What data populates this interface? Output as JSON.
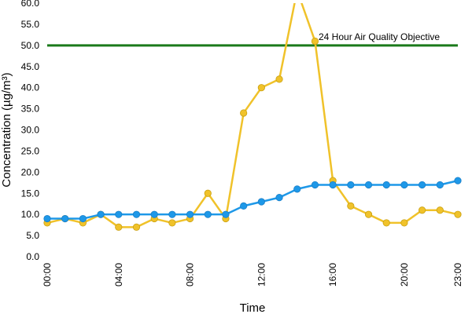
{
  "chart_data": {
    "type": "line",
    "title": "",
    "xlabel": "Time",
    "ylabel": "Concentration (µg/m³)",
    "ylim": [
      0,
      60
    ],
    "yticks": [
      "0.0",
      "5.0",
      "10.0",
      "15.0",
      "20.0",
      "25.0",
      "30.0",
      "35.0",
      "40.0",
      "45.0",
      "50.0",
      "55.0",
      "60.0"
    ],
    "x": [
      "00:00",
      "01:00",
      "02:00",
      "03:00",
      "04:00",
      "05:00",
      "06:00",
      "07:00",
      "08:00",
      "09:00",
      "10:00",
      "11:00",
      "12:00",
      "13:00",
      "14:00",
      "15:00",
      "16:00",
      "17:00",
      "18:00",
      "19:00",
      "20:00",
      "21:00",
      "22:00",
      "23:00"
    ],
    "xticks": [
      "00:00",
      "04:00",
      "08:00",
      "12:00",
      "16:00",
      "20:00",
      "23:00"
    ],
    "grid": false,
    "legend": "none",
    "series": [
      {
        "color": "#f0c22a",
        "values": [
          8,
          9,
          8,
          10,
          7,
          7,
          9,
          8,
          9,
          15,
          9,
          34,
          40,
          42,
          63,
          51,
          18,
          12,
          10,
          8,
          8,
          11,
          11,
          10
        ]
      },
      {
        "color": "#1e98e8",
        "values": [
          9,
          9,
          9,
          10,
          10,
          10,
          10,
          10,
          10,
          10,
          10,
          12,
          13,
          14,
          16,
          17,
          17,
          17,
          17,
          17,
          17,
          17,
          17,
          18
        ]
      }
    ],
    "reference_line": {
      "value": 50,
      "label": "24 Hour Air Quality Objective",
      "color": "#1a7a1a"
    }
  }
}
